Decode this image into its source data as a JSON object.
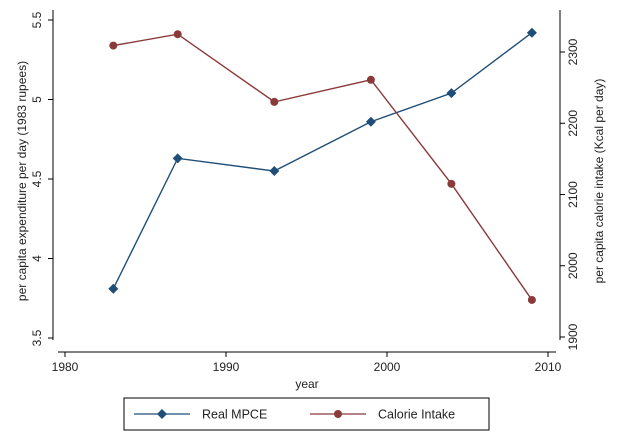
{
  "chart_data": {
    "type": "line",
    "xlabel": "year",
    "y_left_label": "per capita expenditure per day (1983 rupees)",
    "y_right_label": "per capita calorie intake (Kcal per day)",
    "x_ticks": [
      1980,
      1990,
      2000,
      2010
    ],
    "x_tick_labels": [
      "1980",
      "1990",
      "2000",
      "2010"
    ],
    "y_left_ticks": [
      3.5,
      4,
      4.5,
      5,
      5.5
    ],
    "y_left_tick_labels": [
      "3.5",
      "4",
      "4.5",
      "5",
      "5.5"
    ],
    "y_right_ticks": [
      1900,
      2000,
      2100,
      2200,
      2300
    ],
    "y_right_tick_labels": [
      "1900",
      "2000",
      "2100",
      "2200",
      "2300"
    ],
    "xlim": [
      1980,
      2010
    ],
    "ylim_left": [
      3.5,
      5.5
    ],
    "ylim_right": [
      1900,
      2330
    ],
    "grid": false,
    "legend_position": "bottom",
    "series": [
      {
        "name": "Real MPCE",
        "axis": "left",
        "color": "#1f4e79",
        "marker": "diamond",
        "x": [
          1983,
          1987,
          1993,
          1999,
          2004,
          2009
        ],
        "values": [
          3.81,
          4.63,
          4.55,
          4.86,
          5.04,
          5.42
        ]
      },
      {
        "name": "Calorie Intake",
        "axis": "right",
        "color": "#8b3a3a",
        "marker": "circle",
        "x": [
          1983,
          1987,
          1993,
          1999,
          2004,
          2009
        ],
        "values": [
          2309,
          2325,
          2230,
          2261,
          2115,
          1952
        ]
      }
    ]
  }
}
